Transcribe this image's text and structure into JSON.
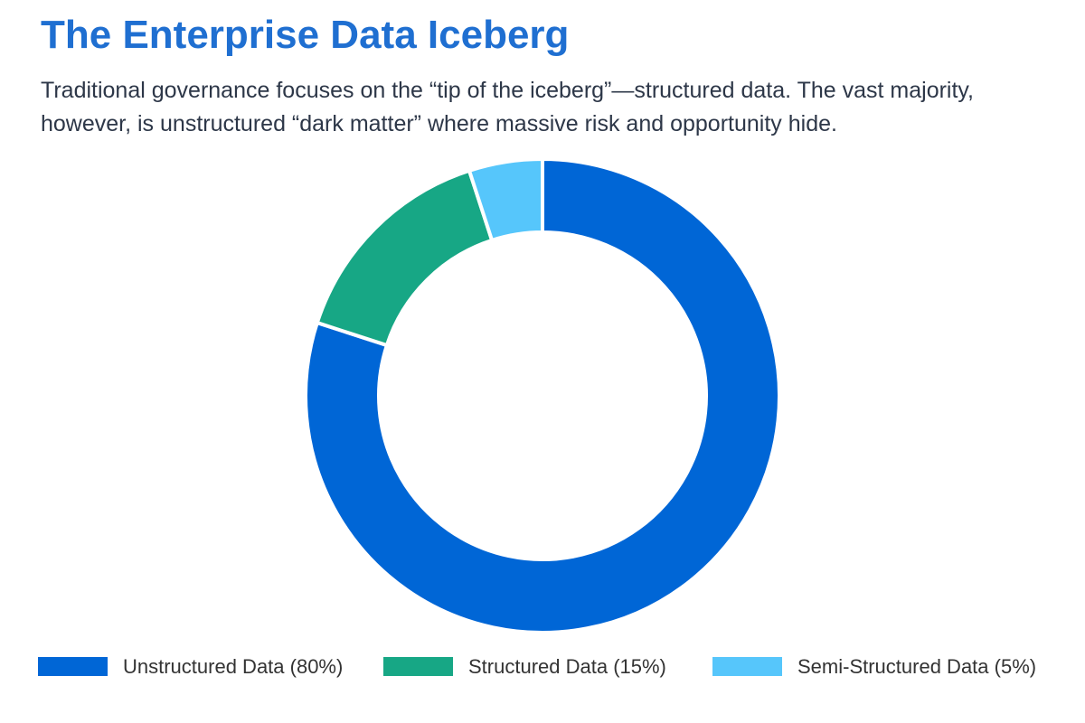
{
  "page": {
    "title": "The Enterprise Data Iceberg",
    "subtitle": "Traditional governance focuses on the “tip of the iceberg”—structured data. The vast majority, however, is unstructured “dark matter” where massive risk and opportunity hide."
  },
  "chart_data": {
    "type": "pie",
    "variant": "doughnut",
    "categories": [
      "Unstructured Data",
      "Structured Data",
      "Semi-Structured Data"
    ],
    "values": [
      80,
      15,
      5
    ],
    "unit": "%",
    "colors": [
      "#0066d6",
      "#17a785",
      "#56c6fb"
    ],
    "legend_labels": [
      "Unstructured Data (80%)",
      "Structured Data (15%)",
      "Semi-Structured Data (5%)"
    ],
    "legend_position": "bottom",
    "title": "",
    "xlabel": "",
    "ylabel": ""
  }
}
